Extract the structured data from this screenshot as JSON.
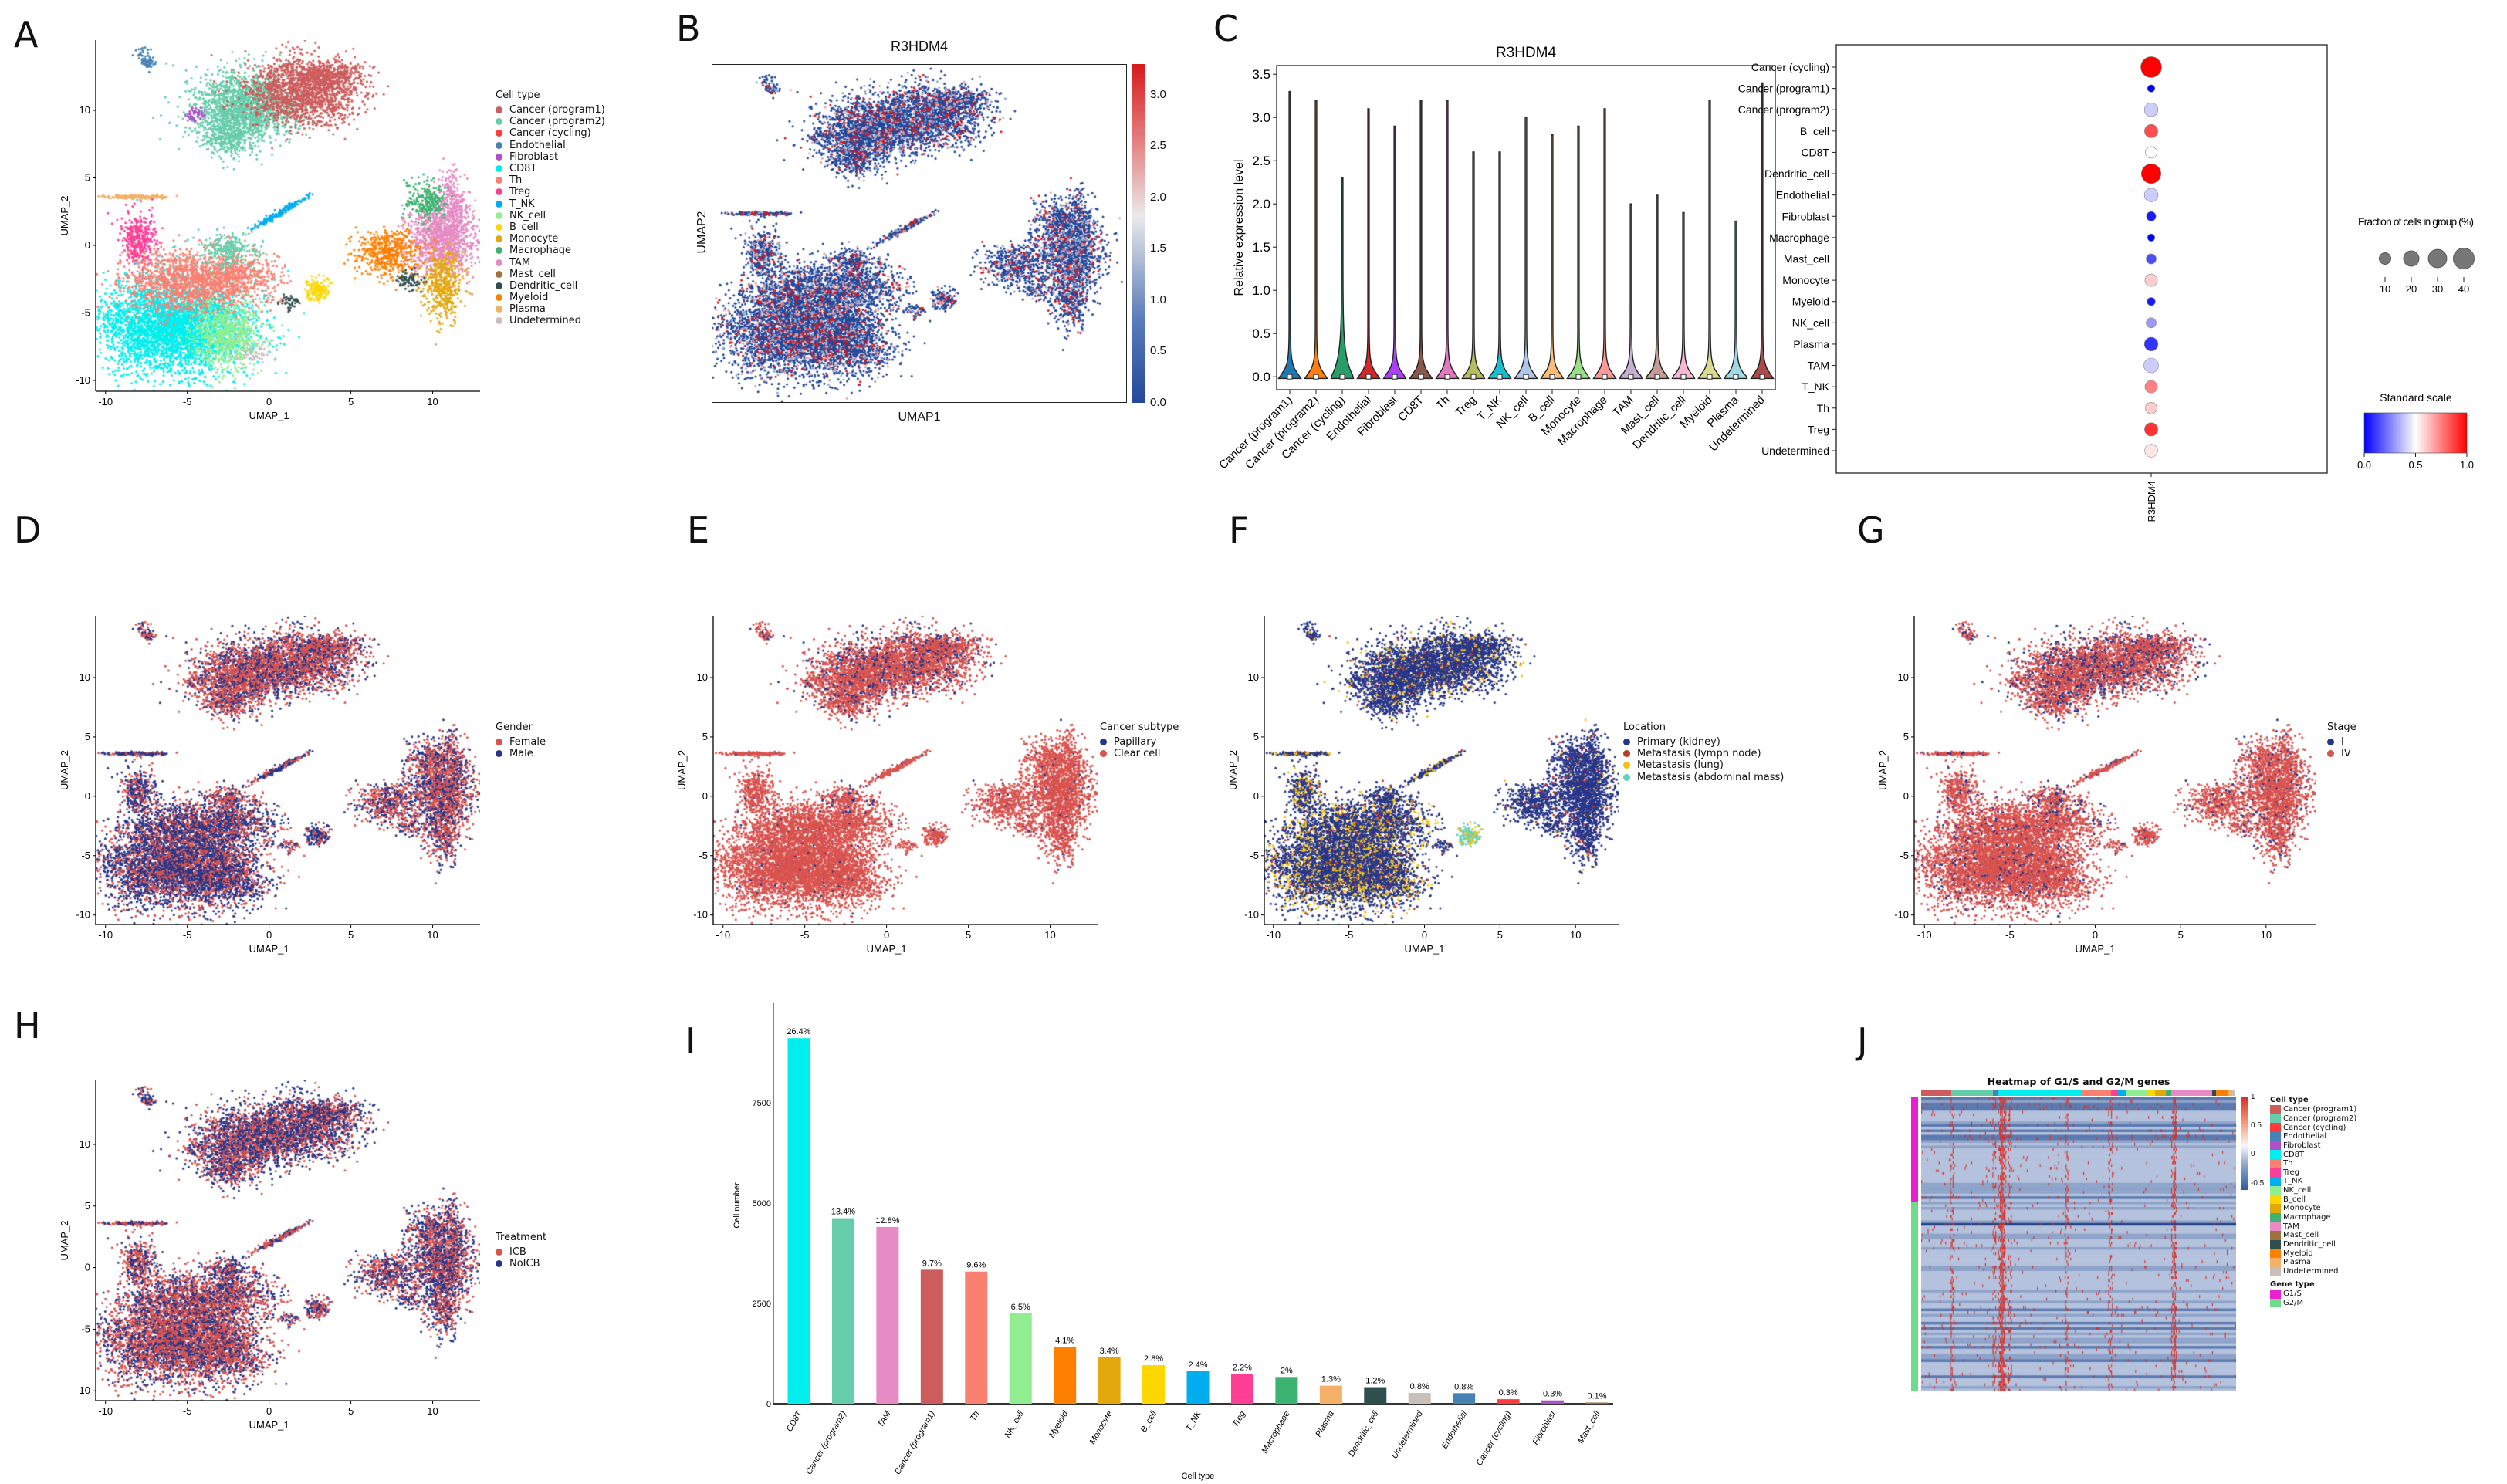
{
  "panel_labels": {
    "A": "A",
    "B": "B",
    "C": "C",
    "D": "D",
    "E": "E",
    "F": "F",
    "G": "G",
    "H": "H",
    "I": "I",
    "J": "J"
  },
  "cell_types": [
    {
      "name": "Cancer (program1)",
      "color": "#cd5c5c"
    },
    {
      "name": "Cancer (program2)",
      "color": "#66cdaa"
    },
    {
      "name": "Cancer (cycling)",
      "color": "#ff3b3b"
    },
    {
      "name": "Endothelial",
      "color": "#4682b4"
    },
    {
      "name": "Fibroblast",
      "color": "#b050c8"
    },
    {
      "name": "CD8T",
      "color": "#00eeee"
    },
    {
      "name": "Th",
      "color": "#fa8072"
    },
    {
      "name": "Treg",
      "color": "#ff3e96"
    },
    {
      "name": "T_NK",
      "color": "#00aeef"
    },
    {
      "name": "NK_cell",
      "color": "#90ee90"
    },
    {
      "name": "B_cell",
      "color": "#ffd700"
    },
    {
      "name": "Monocyte",
      "color": "#e3a90c"
    },
    {
      "name": "Macrophage",
      "color": "#3cb371"
    },
    {
      "name": "TAM",
      "color": "#e68bc3"
    },
    {
      "name": "Mast_cell",
      "color": "#a0703f"
    },
    {
      "name": "Dendritic_cell",
      "color": "#2f4f4f"
    },
    {
      "name": "Myeloid",
      "color": "#ff7f00"
    },
    {
      "name": "Plasma",
      "color": "#f4b066"
    },
    {
      "name": "Undetermined",
      "color": "#c9c0bb"
    }
  ],
  "umap_axes": {
    "xlabel": "UMAP_1",
    "ylabel": "UMAP_2",
    "xticks": [
      "-10",
      "-5",
      "0",
      "5",
      "10"
    ],
    "yticks": [
      "10",
      "5",
      "0",
      "-5",
      "-10"
    ]
  },
  "panel_a": {
    "legend_title": "Cell type"
  },
  "panel_b": {
    "title": "R3HDM4",
    "xlabel": "UMAP1",
    "ylabel": "UMAP2",
    "colorbar_ticks": [
      "0.0",
      "0.5",
      "1.0",
      "1.5",
      "2.0",
      "2.5",
      "3.0"
    ],
    "low_color": "#23479a",
    "high_color": "#d7191c"
  },
  "panel_d": {
    "legend_title": "Gender",
    "items": [
      {
        "label": "Female",
        "color": "#d9534f"
      },
      {
        "label": "Male",
        "color": "#27368a"
      }
    ]
  },
  "panel_e": {
    "legend_title": "Cancer subtype",
    "items": [
      {
        "label": "Papillary",
        "color": "#27368a"
      },
      {
        "label": "Clear cell",
        "color": "#d9534f"
      }
    ]
  },
  "panel_f": {
    "legend_title": "Location",
    "items": [
      {
        "label": "Primary (kidney)",
        "color": "#27368a"
      },
      {
        "label": "Metastasis (lymph node)",
        "color": "#c0392b"
      },
      {
        "label": "Metastasis (lung)",
        "color": "#f2c21b"
      },
      {
        "label": "Metastasis (abdominal mass)",
        "color": "#5fd3c0"
      }
    ]
  },
  "panel_g": {
    "legend_title": "Stage",
    "items": [
      {
        "label": "I",
        "color": "#27368a"
      },
      {
        "label": "IV",
        "color": "#d9534f"
      }
    ]
  },
  "panel_h": {
    "legend_title": "Treatment",
    "items": [
      {
        "label": "ICB",
        "color": "#d9534f"
      },
      {
        "label": "NoICB",
        "color": "#27368a"
      }
    ]
  },
  "chart_data": [
    {
      "type": "violin",
      "panel": "C",
      "title": "R3HDM4",
      "ylabel": "Relative expression level",
      "ylim": [
        -0.15,
        3.6
      ],
      "yticks": [
        "0.0",
        "0.5",
        "1.0",
        "1.5",
        "2.0",
        "2.5",
        "3.0",
        "3.5"
      ],
      "categories": [
        "Cancer (program1)",
        "Cancer (program2)",
        "Cancer (cycling)",
        "Endothelial",
        "Fibroblast",
        "CD8T",
        "Th",
        "Treg",
        "T_NK",
        "NK_cell",
        "B_cell",
        "Monocyte",
        "Macrophage",
        "TAM",
        "Mast_cell",
        "Dendritic_cell",
        "Myeloid",
        "Plasma",
        "Undetermined"
      ],
      "max": [
        3.3,
        3.2,
        2.3,
        3.1,
        2.9,
        3.2,
        3.2,
        2.6,
        2.6,
        3.0,
        2.8,
        2.9,
        3.1,
        2.0,
        2.1,
        1.9,
        3.2,
        1.8,
        3.4
      ],
      "median": [
        0,
        0,
        0,
        0,
        0,
        0,
        0,
        0,
        0,
        0,
        0,
        0,
        0,
        0,
        0,
        0,
        0,
        0,
        0
      ],
      "colors": [
        "#1f77b4",
        "#ff7f0e",
        "#279e68",
        "#d62728",
        "#aa40fc",
        "#8c564b",
        "#e377c2",
        "#b5bd61",
        "#17becf",
        "#aec7e8",
        "#ffbb78",
        "#98df8a",
        "#ff9896",
        "#c5b0d5",
        "#c49c94",
        "#f7b6d2",
        "#dbdb8d",
        "#9edae5",
        "#ad494a"
      ]
    },
    {
      "type": "dotplot",
      "panel": "C-right",
      "gene": "R3HDM4",
      "categories": [
        "Cancer (cycling)",
        "Cancer (program1)",
        "Cancer (program2)",
        "B_cell",
        "CD8T",
        "Dendritic_cell",
        "Endothelial",
        "Fibroblast",
        "Macrophage",
        "Mast_cell",
        "Monocyte",
        "Myeloid",
        "NK_cell",
        "Plasma",
        "TAM",
        "T_NK",
        "Th",
        "Treg",
        "Undetermined"
      ],
      "fraction_pct": [
        40,
        3,
        15,
        14,
        10,
        35,
        15,
        6,
        3,
        7,
        12,
        4,
        7,
        15,
        18,
        12,
        10,
        14,
        13
      ],
      "standard_scale": [
        1.0,
        0.0,
        0.4,
        0.85,
        0.5,
        1.0,
        0.4,
        0.05,
        0.0,
        0.15,
        0.6,
        0.05,
        0.3,
        0.1,
        0.4,
        0.75,
        0.6,
        0.9,
        0.55
      ],
      "size_legend_title": "Fraction of cells in group (%)",
      "size_ticks": [
        "10",
        "20",
        "30",
        "40"
      ],
      "color_legend_title": "Standard scale",
      "color_ticks": [
        "0.0",
        "0.5",
        "1.0"
      ]
    },
    {
      "type": "bar",
      "panel": "I",
      "xlabel": "Cell type",
      "ylabel": "Cell number",
      "yticks": [
        "0",
        "2500",
        "5000",
        "7500"
      ],
      "ylim": [
        0,
        9600
      ],
      "categories": [
        "CD8T",
        "Cancer (program2)",
        "TAM",
        "Cancer (program1)",
        "Th",
        "NK_cell",
        "Myeloid",
        "Monocyte",
        "B_cell",
        "T_NK",
        "Treg",
        "Macrophage",
        "Plasma",
        "Dendritic_cell",
        "Undetermined",
        "Endothelial",
        "Cancer (cycling)",
        "Fibroblast",
        "Mast_cell"
      ],
      "values": [
        9115,
        4625,
        4407,
        3341,
        3296,
        2252,
        1411,
        1156,
        961,
        811,
        743,
        668,
        450,
        413,
        270,
        263,
        113,
        83,
        30
      ],
      "labels": [
        "26.4%",
        "13.4%",
        "12.8%",
        "9.7%",
        "9.6%",
        "6.5%",
        "4.1%",
        "3.4%",
        "2.8%",
        "2.4%",
        "2.2%",
        "2%",
        "1.3%",
        "1.2%",
        "0.8%",
        "0.8%",
        "0.3%",
        "0.3%",
        "0.1%"
      ]
    },
    {
      "type": "heatmap",
      "panel": "J",
      "title": "Heatmap of G1/S and G2/M genes",
      "colorbar_ticks": [
        "1",
        "0.5",
        "0",
        "-0.5"
      ],
      "cell_type_legend_title": "Cell type",
      "gene_type_legend_title": "Gene type",
      "gene_types": [
        {
          "label": "G1/S",
          "color": "#e820d0"
        },
        {
          "label": "G2/M",
          "color": "#6fdc8c"
        }
      ],
      "column_annotation": [
        {
          "type": "Cancer (program1)",
          "fraction": 0.096
        },
        {
          "type": "Cancer (program2)",
          "fraction": 0.133
        },
        {
          "type": "Endothelial",
          "fraction": 0.016
        },
        {
          "type": "CD8T",
          "fraction": 0.265
        },
        {
          "type": "Th",
          "fraction": 0.094
        },
        {
          "type": "Treg",
          "fraction": 0.022
        },
        {
          "type": "T_NK",
          "fraction": 0.024
        },
        {
          "type": "NK_cell",
          "fraction": 0.065
        },
        {
          "type": "B_cell",
          "fraction": 0.028
        },
        {
          "type": "Monocyte",
          "fraction": 0.035
        },
        {
          "type": "Macrophage",
          "fraction": 0.017
        },
        {
          "type": "TAM",
          "fraction": 0.129
        },
        {
          "type": "Dendritic_cell",
          "fraction": 0.012
        },
        {
          "type": "Myeloid",
          "fraction": 0.04
        },
        {
          "type": "Plasma",
          "fraction": 0.013
        },
        {
          "type": "Undetermined",
          "fraction": 0.008
        }
      ]
    }
  ]
}
